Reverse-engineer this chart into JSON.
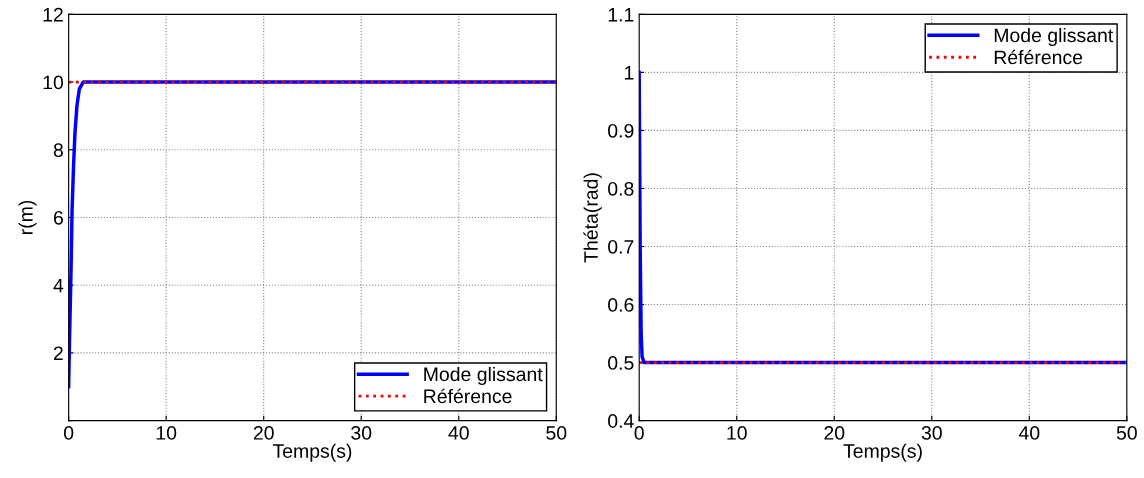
{
  "chart_data": [
    {
      "type": "line",
      "xlabel": "Temps(s)",
      "ylabel": "r(m)",
      "xlim": [
        0,
        50
      ],
      "xticks": [
        0,
        10,
        20,
        30,
        40,
        50
      ],
      "ylim": [
        0,
        12
      ],
      "yticks": [
        {
          "value": 0,
          "label": null
        },
        2,
        4,
        6,
        8,
        10,
        12
      ],
      "grid": true,
      "legend": "bottom right",
      "series": [
        {
          "name": "Mode glissant",
          "color": "#0000ff",
          "line_style": "solid",
          "x": [
            0,
            0.1,
            0.25,
            0.35,
            0.5,
            0.65,
            0.85,
            1.1,
            1.5,
            50
          ],
          "values": [
            1,
            2.5,
            4.5,
            6.2,
            7.5,
            8.5,
            9.3,
            9.8,
            10,
            10
          ]
        },
        {
          "name": "Référence",
          "color": "#ff0000",
          "line_style": "dotted",
          "x": [
            0,
            50
          ],
          "values": [
            10,
            10
          ]
        }
      ]
    },
    {
      "type": "line",
      "xlabel": "Temps(s)",
      "ylabel": "Théta(rad)",
      "xlim": [
        0,
        50
      ],
      "xticks": [
        0,
        10,
        20,
        30,
        40,
        50
      ],
      "ylim": [
        0.4,
        1.1
      ],
      "yticks": [
        0.4,
        0.5,
        0.6,
        0.7,
        0.8,
        0.9,
        1,
        1.1
      ],
      "grid": true,
      "legend": "upper right",
      "series": [
        {
          "name": "Mode glissant",
          "color": "#0000ff",
          "line_style": "solid",
          "x": [
            0,
            0.05,
            0.1,
            0.2,
            0.3,
            0.5,
            50
          ],
          "values": [
            1,
            0.85,
            0.7,
            0.55,
            0.51,
            0.5,
            0.5
          ]
        },
        {
          "name": "Référence",
          "color": "#ff0000",
          "line_style": "dotted",
          "x": [
            0,
            50
          ],
          "values": [
            0.5,
            0.5
          ]
        }
      ]
    }
  ]
}
